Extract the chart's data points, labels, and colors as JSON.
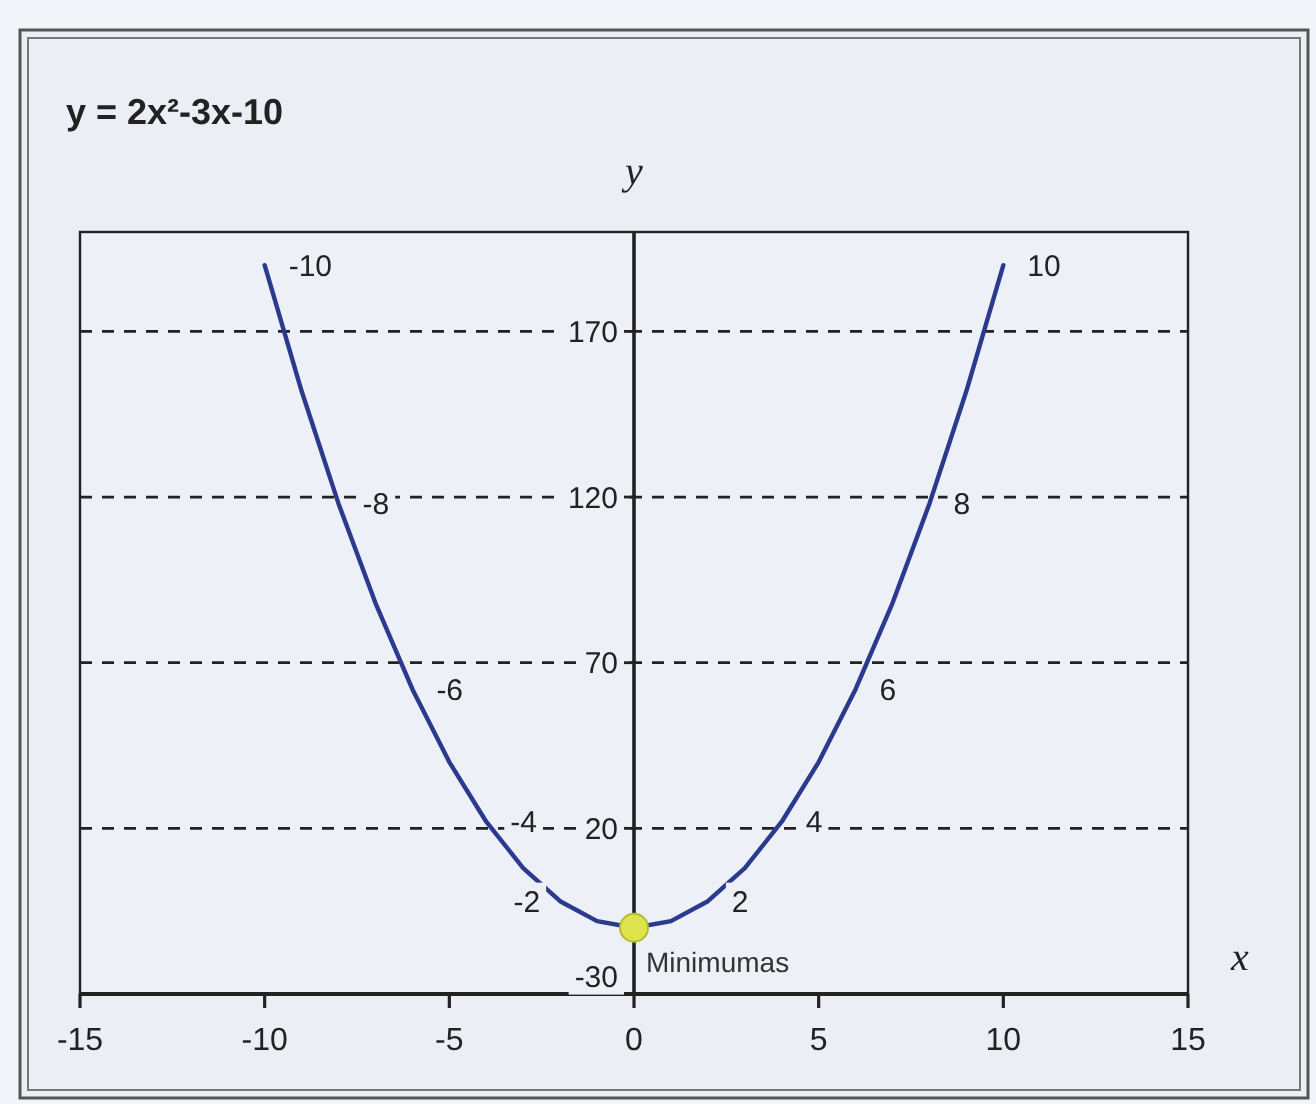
{
  "chart_data": {
    "type": "line",
    "title": "y = 2x²-3x-10",
    "xlabel": "x",
    "ylabel": "y",
    "xlim": [
      -15,
      15
    ],
    "xticks": [
      -15,
      -10,
      -5,
      0,
      5,
      10,
      15
    ],
    "ylim": [
      -30,
      200
    ],
    "yticks": [
      -30,
      20,
      70,
      120,
      170
    ],
    "grid": "y",
    "series": [
      {
        "color": "#2b3a8c",
        "x": [
          -10,
          -9,
          -8,
          -7,
          -6,
          -5,
          -4,
          -3,
          -2,
          -1,
          0,
          1,
          2,
          3,
          4,
          5,
          6,
          7,
          8,
          9,
          10
        ],
        "values": [
          190,
          152,
          118,
          88,
          62,
          40,
          22,
          8,
          -2,
          -8,
          -10,
          -8,
          -2,
          8,
          22,
          40,
          62,
          88,
          118,
          152,
          190
        ]
      },
      {
        "type": "scatter",
        "color": "#dde34a",
        "x": [
          0
        ],
        "values": [
          -10
        ]
      }
    ],
    "annotations": [
      {
        "text": "-10",
        "x": -10,
        "y": 190
      },
      {
        "text": "-8",
        "x": -8,
        "y": 118
      },
      {
        "text": "-6",
        "x": -6,
        "y": 62
      },
      {
        "text": "-4",
        "x": -4,
        "y": 22
      },
      {
        "text": "-2",
        "x": -2,
        "y": -2
      },
      {
        "text": "2",
        "x": 2,
        "y": -2
      },
      {
        "text": "4",
        "x": 4,
        "y": 22
      },
      {
        "text": "6",
        "x": 6,
        "y": 62
      },
      {
        "text": "8",
        "x": 8,
        "y": 118
      },
      {
        "text": "10",
        "x": 10,
        "y": 190
      },
      {
        "text": "Minimumas",
        "x": 0,
        "y": -10
      }
    ]
  }
}
